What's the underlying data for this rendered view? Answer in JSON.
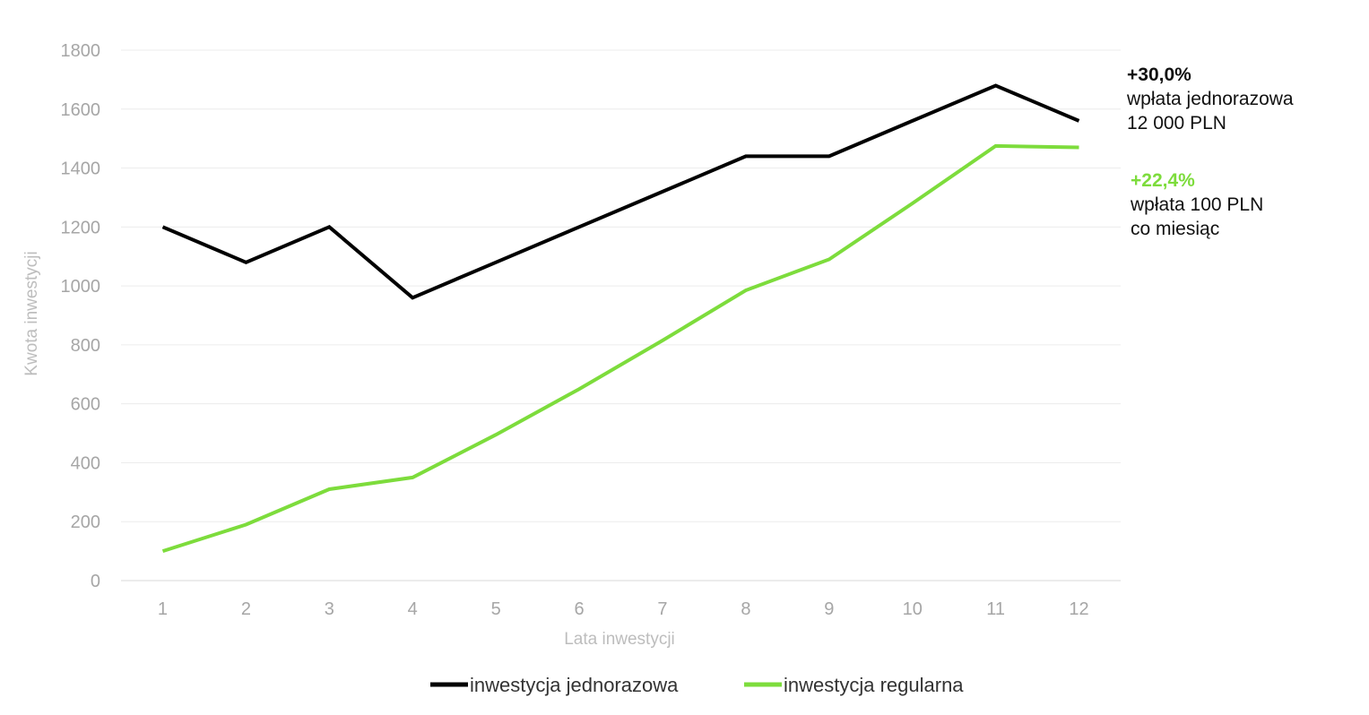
{
  "chart_data": {
    "type": "line",
    "title": "",
    "xlabel": "Lata inwestycji",
    "ylabel": "Kwota inwestycji",
    "categories": [
      "1",
      "2",
      "3",
      "4",
      "5",
      "6",
      "7",
      "8",
      "9",
      "10",
      "11",
      "12"
    ],
    "ylim": [
      0,
      1800
    ],
    "yticks": [
      0,
      200,
      400,
      600,
      800,
      1000,
      1200,
      1400,
      1600,
      1800
    ],
    "grid": true,
    "legend_position": "bottom",
    "series": [
      {
        "name": "inwestycja jednorazowa",
        "color": "#000000",
        "values": [
          1200,
          1080,
          1200,
          960,
          1080,
          1200,
          1320,
          1440,
          1440,
          1560,
          1680,
          1560
        ]
      },
      {
        "name": "inwestycja regularna",
        "color": "#7ddc3c",
        "values": [
          100,
          190,
          310,
          350,
          495,
          650,
          815,
          985,
          1090,
          1280,
          1475,
          1470
        ]
      }
    ],
    "annotations": [
      {
        "percent": "+30,0%",
        "line1": "wpłata jednorazowa",
        "line2": "12 000 PLN",
        "color": "#000000"
      },
      {
        "percent": "+22,4%",
        "line1": "wpłata 100 PLN",
        "line2": "co miesiąc",
        "color": "#7ddc3c"
      }
    ]
  }
}
